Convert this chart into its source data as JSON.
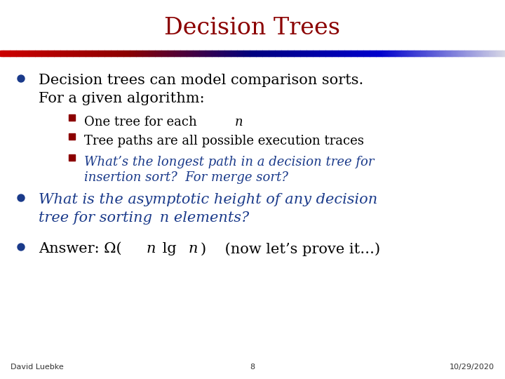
{
  "title": "Decision Trees",
  "title_color": "#8B0000",
  "title_fontsize": 24,
  "bg_color": "#FFFFFF",
  "bullet_color": "#1a3a8a",
  "sub_bullet_color": "#8B0000",
  "text_color": "#000000",
  "blue_text_color": "#1a3a8a",
  "footer_left": "David Luebke",
  "footer_center": "8",
  "footer_right": "10/29/2020",
  "footer_fontsize": 8,
  "main_fontsize": 15,
  "sub_fontsize": 13
}
